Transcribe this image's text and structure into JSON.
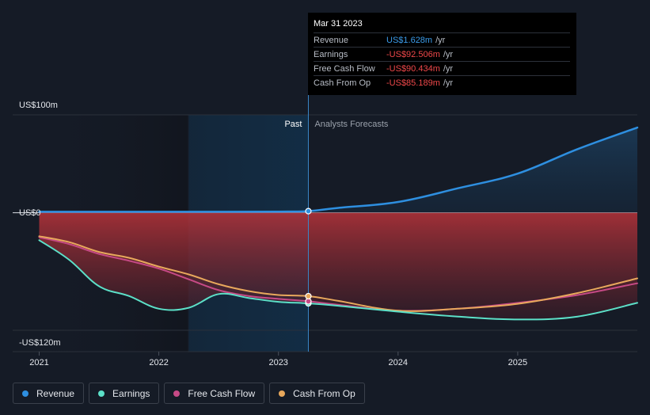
{
  "tooltip": {
    "date": "Mar 31 2023",
    "rows": [
      {
        "label": "Revenue",
        "value": "US$1.628m",
        "unit": "/yr",
        "color": "#3b9be8"
      },
      {
        "label": "Earnings",
        "value": "-US$92.506m",
        "unit": "/yr",
        "color": "#f0484a"
      },
      {
        "label": "Free Cash Flow",
        "value": "-US$90.434m",
        "unit": "/yr",
        "color": "#f0484a"
      },
      {
        "label": "Cash From Op",
        "value": "-US$85.189m",
        "unit": "/yr",
        "color": "#f0484a"
      }
    ]
  },
  "regions": {
    "past": "Past",
    "forecast": "Analysts Forecasts"
  },
  "legend": [
    {
      "label": "Revenue",
      "color": "#2e8fe0"
    },
    {
      "label": "Earnings",
      "color": "#5ce0c8"
    },
    {
      "label": "Free Cash Flow",
      "color": "#c64a86"
    },
    {
      "label": "Cash From Op",
      "color": "#e8a85c"
    }
  ],
  "chart_data": {
    "type": "line",
    "y_tick_labels": [
      {
        "value": 100,
        "label": "US$100m"
      },
      {
        "value": 0,
        "label": "US$0"
      },
      {
        "value": -120,
        "label": "-US$120m"
      }
    ],
    "x_tick_labels": [
      {
        "value": 2021,
        "label": "2021"
      },
      {
        "value": 2022,
        "label": "2022"
      },
      {
        "value": 2023,
        "label": "2023"
      },
      {
        "value": 2024,
        "label": "2024"
      },
      {
        "value": 2025,
        "label": "2025"
      }
    ],
    "xlim": [
      2020.99,
      2026.0
    ],
    "ylim": [
      -120,
      100
    ],
    "divider_x": 2023.25,
    "highlight_x_start": 2022.25,
    "series": [
      {
        "name": "Revenue",
        "color": "#2e8fe0",
        "x": [
          2021.0,
          2021.5,
          2022.0,
          2022.5,
          2023.0,
          2023.25,
          2023.5,
          2024.0,
          2024.5,
          2025.0,
          2025.5,
          2026.0
        ],
        "y": [
          1.0,
          1.0,
          1.0,
          1.0,
          1.2,
          1.628,
          5,
          11,
          25,
          40,
          65,
          87
        ]
      },
      {
        "name": "Earnings",
        "color": "#5ce0c8",
        "x": [
          2021.0,
          2021.25,
          2021.5,
          2021.75,
          2022.0,
          2022.25,
          2022.5,
          2022.75,
          2023.0,
          2023.25,
          2023.5,
          2024.0,
          2024.5,
          2025.0,
          2025.5,
          2026.0
        ],
        "y": [
          -28,
          -48,
          -75,
          -85,
          -98,
          -97,
          -83,
          -87,
          -91,
          -92.506,
          -95,
          -101,
          -106,
          -109,
          -106,
          -92
        ]
      },
      {
        "name": "Free Cash Flow",
        "color": "#c64a86",
        "x": [
          2021.0,
          2021.25,
          2021.5,
          2021.75,
          2022.0,
          2022.25,
          2022.5,
          2022.75,
          2023.0,
          2023.25,
          2023.5,
          2024.0,
          2024.5,
          2025.0,
          2025.5,
          2026.0
        ],
        "y": [
          -25,
          -32,
          -42,
          -49,
          -57,
          -68,
          -79,
          -85,
          -88,
          -90.434,
          -94,
          -100,
          -98,
          -92,
          -84,
          -72
        ]
      },
      {
        "name": "Cash From Op",
        "color": "#e8a85c",
        "x": [
          2021.0,
          2021.25,
          2021.5,
          2021.75,
          2022.0,
          2022.25,
          2022.5,
          2022.75,
          2023.0,
          2023.25,
          2023.5,
          2024.0,
          2024.5,
          2025.0,
          2025.5,
          2026.0
        ],
        "y": [
          -24,
          -30,
          -40,
          -46,
          -55,
          -63,
          -73,
          -80,
          -84,
          -85.189,
          -90,
          -100,
          -98,
          -93,
          -82,
          -67
        ]
      }
    ]
  }
}
